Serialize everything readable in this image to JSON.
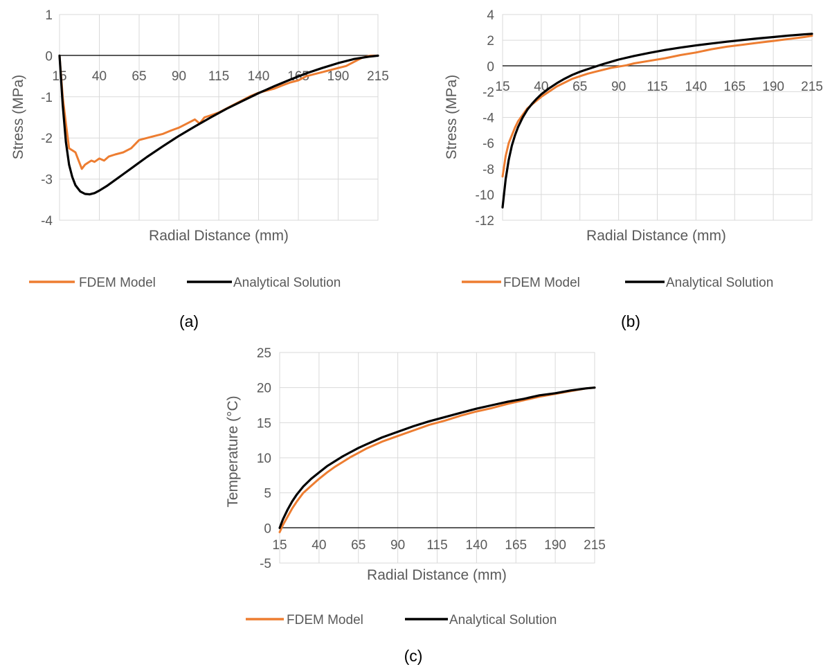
{
  "chart_data": [
    {
      "type": "line",
      "caption": "(a)",
      "xlabel": "Radial Distance (mm)",
      "ylabel": "Stress (MPa)",
      "xlim": [
        15,
        215
      ],
      "ylim": [
        -4,
        1
      ],
      "x_ticks": [
        15,
        40,
        65,
        90,
        115,
        140,
        165,
        190,
        215
      ],
      "y_ticks": [
        1,
        0,
        -1,
        -2,
        -3,
        -4
      ],
      "grid": true,
      "legend_position": "bottom",
      "series": [
        {
          "name": "FDEM Model",
          "color": "#ed7d31",
          "x": [
            15,
            17,
            19,
            21,
            23,
            25,
            27,
            29,
            31,
            33,
            35,
            37,
            40,
            43,
            46,
            50,
            55,
            60,
            65,
            70,
            75,
            80,
            85,
            90,
            95,
            100,
            103,
            106,
            110,
            115,
            120,
            125,
            130,
            135,
            140,
            145,
            150,
            155,
            160,
            165,
            170,
            175,
            180,
            185,
            190,
            195,
            200,
            205,
            210,
            215
          ],
          "y": [
            0,
            -1.0,
            -1.65,
            -2.25,
            -2.3,
            -2.35,
            -2.55,
            -2.75,
            -2.65,
            -2.6,
            -2.55,
            -2.58,
            -2.5,
            -2.55,
            -2.45,
            -2.4,
            -2.35,
            -2.25,
            -2.05,
            -2.0,
            -1.95,
            -1.9,
            -1.82,
            -1.75,
            -1.65,
            -1.55,
            -1.65,
            -1.5,
            -1.45,
            -1.38,
            -1.28,
            -1.18,
            -1.08,
            -0.98,
            -0.9,
            -0.85,
            -0.8,
            -0.72,
            -0.65,
            -0.6,
            -0.5,
            -0.45,
            -0.4,
            -0.35,
            -0.3,
            -0.25,
            -0.15,
            -0.05,
            0,
            0
          ]
        },
        {
          "name": "Analytical Solution",
          "color": "#000000",
          "x": [
            15,
            17,
            19,
            21,
            23,
            25,
            28,
            31,
            34,
            37,
            40,
            45,
            50,
            55,
            60,
            65,
            70,
            80,
            90,
            100,
            110,
            120,
            130,
            140,
            150,
            160,
            170,
            180,
            190,
            200,
            210,
            215
          ],
          "y": [
            0,
            -1.2,
            -2.1,
            -2.65,
            -2.95,
            -3.15,
            -3.3,
            -3.36,
            -3.37,
            -3.34,
            -3.28,
            -3.16,
            -3.02,
            -2.88,
            -2.74,
            -2.6,
            -2.46,
            -2.2,
            -1.95,
            -1.72,
            -1.5,
            -1.29,
            -1.1,
            -0.91,
            -0.74,
            -0.58,
            -0.43,
            -0.3,
            -0.18,
            -0.08,
            -0.02,
            0
          ]
        }
      ]
    },
    {
      "type": "line",
      "caption": "(b)",
      "xlabel": "Radial Distance (mm)",
      "ylabel": "Stress (MPa)",
      "xlim": [
        15,
        215
      ],
      "ylim": [
        -12,
        4
      ],
      "x_ticks": [
        15,
        40,
        65,
        90,
        115,
        140,
        165,
        190,
        215
      ],
      "y_ticks": [
        4,
        2,
        0,
        -2,
        -4,
        -6,
        -8,
        -10,
        -12
      ],
      "grid": true,
      "legend_position": "bottom",
      "series": [
        {
          "name": "FDEM Model",
          "color": "#ed7d31",
          "x": [
            15,
            17,
            19,
            21,
            23,
            25,
            28,
            31,
            34,
            37,
            40,
            45,
            50,
            55,
            60,
            65,
            70,
            75,
            80,
            85,
            90,
            95,
            100,
            110,
            120,
            130,
            140,
            150,
            160,
            170,
            180,
            190,
            200,
            210,
            215
          ],
          "y": [
            -8.6,
            -7.0,
            -6.0,
            -5.4,
            -4.8,
            -4.3,
            -3.8,
            -3.3,
            -3.0,
            -2.7,
            -2.4,
            -2.0,
            -1.6,
            -1.3,
            -1.0,
            -0.8,
            -0.6,
            -0.45,
            -0.3,
            -0.15,
            -0.05,
            0.05,
            0.2,
            0.4,
            0.6,
            0.85,
            1.05,
            1.3,
            1.5,
            1.65,
            1.8,
            1.95,
            2.1,
            2.25,
            2.35
          ]
        },
        {
          "name": "Analytical Solution",
          "color": "#000000",
          "x": [
            15,
            17,
            19,
            21,
            23,
            25,
            28,
            31,
            34,
            37,
            40,
            45,
            50,
            55,
            60,
            65,
            70,
            80,
            90,
            100,
            110,
            120,
            130,
            140,
            150,
            160,
            170,
            180,
            190,
            200,
            210,
            215
          ],
          "y": [
            -11.0,
            -8.8,
            -7.3,
            -6.2,
            -5.4,
            -4.75,
            -4.0,
            -3.4,
            -2.95,
            -2.55,
            -2.2,
            -1.75,
            -1.35,
            -1.0,
            -0.7,
            -0.45,
            -0.25,
            0.15,
            0.5,
            0.78,
            1.02,
            1.24,
            1.43,
            1.6,
            1.75,
            1.89,
            2.02,
            2.14,
            2.25,
            2.36,
            2.46,
            2.5
          ]
        }
      ]
    },
    {
      "type": "line",
      "caption": "(c)",
      "xlabel": "Radial Distance (mm)",
      "ylabel": "Temperature (°C)",
      "xlim": [
        15,
        215
      ],
      "ylim": [
        -5,
        25
      ],
      "x_ticks": [
        15,
        40,
        65,
        90,
        115,
        140,
        165,
        190,
        215
      ],
      "y_ticks": [
        25,
        20,
        15,
        10,
        5,
        0,
        -5
      ],
      "grid": true,
      "legend_position": "bottom",
      "series": [
        {
          "name": "FDEM Model",
          "color": "#ed7d31",
          "x": [
            15,
            17,
            20,
            23,
            26,
            30,
            35,
            40,
            45,
            50,
            55,
            60,
            65,
            70,
            75,
            80,
            90,
            100,
            110,
            120,
            130,
            140,
            150,
            160,
            170,
            180,
            190,
            200,
            210,
            215
          ],
          "y": [
            -0.6,
            0.4,
            1.6,
            2.8,
            3.8,
            5.0,
            6.0,
            7.0,
            7.9,
            8.7,
            9.4,
            10.1,
            10.7,
            11.3,
            11.8,
            12.3,
            13.1,
            13.9,
            14.7,
            15.3,
            16.0,
            16.6,
            17.1,
            17.7,
            18.2,
            18.7,
            19.1,
            19.5,
            19.9,
            20.0
          ]
        },
        {
          "name": "Analytical Solution",
          "color": "#000000",
          "x": [
            15,
            17,
            20,
            23,
            26,
            30,
            35,
            40,
            45,
            50,
            55,
            60,
            65,
            70,
            80,
            90,
            100,
            110,
            120,
            130,
            140,
            150,
            160,
            170,
            180,
            190,
            200,
            210,
            215
          ],
          "y": [
            0,
            1.2,
            2.6,
            3.8,
            4.8,
            5.9,
            7.0,
            7.9,
            8.8,
            9.5,
            10.2,
            10.8,
            11.4,
            11.9,
            12.9,
            13.7,
            14.5,
            15.2,
            15.8,
            16.4,
            17.0,
            17.5,
            18.0,
            18.4,
            18.9,
            19.2,
            19.6,
            19.9,
            20.0
          ]
        }
      ]
    }
  ]
}
